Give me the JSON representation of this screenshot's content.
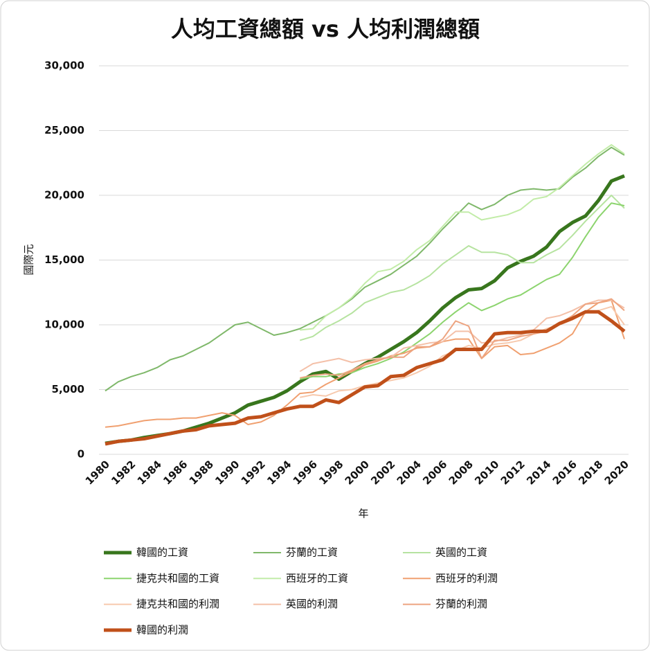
{
  "chart_data": {
    "type": "line",
    "title": "人均工資總額 vs 人均利潤總額",
    "x_label": "年",
    "y_label": "國際元",
    "x": [
      1980,
      1981,
      1982,
      1983,
      1984,
      1985,
      1986,
      1987,
      1988,
      1989,
      1990,
      1991,
      1992,
      1993,
      1994,
      1995,
      1996,
      1997,
      1998,
      1999,
      2000,
      2001,
      2002,
      2003,
      2004,
      2005,
      2006,
      2007,
      2008,
      2009,
      2010,
      2011,
      2012,
      2013,
      2014,
      2015,
      2016,
      2017,
      2018,
      2019,
      2020
    ],
    "xlim": [
      1980,
      2020
    ],
    "xticks": [
      1980,
      1982,
      1984,
      1986,
      1988,
      1990,
      1992,
      1994,
      1996,
      1998,
      2000,
      2002,
      2004,
      2006,
      2008,
      2010,
      2012,
      2014,
      2016,
      2018,
      2020
    ],
    "ylim": [
      0,
      30000
    ],
    "yticks": [
      0,
      {
        "value": 5000,
        "label": "5,000"
      },
      {
        "value": 10000,
        "label": "10,000"
      },
      {
        "value": 15000,
        "label": "15,000"
      },
      {
        "value": 20000,
        "label": "20,000"
      },
      {
        "value": 25000,
        "label": "25,000"
      },
      {
        "value": 30000,
        "label": "30,000"
      }
    ],
    "grid": true,
    "series": [
      {
        "name": "韓國的工資",
        "color": "#38761d",
        "line_width": 5,
        "values": [
          850,
          1000,
          1100,
          1300,
          1450,
          1600,
          1800,
          2100,
          2400,
          2800,
          3200,
          3800,
          4100,
          4400,
          4900,
          5600,
          6200,
          6400,
          5800,
          6400,
          7000,
          7500,
          8100,
          8700,
          9400,
          10300,
          11300,
          12100,
          12700,
          12800,
          13400,
          14400,
          14900,
          15300,
          16000,
          17200,
          17900,
          18400,
          19600,
          21100,
          21500
        ]
      },
      {
        "name": "芬蘭的工資",
        "color": "#7fb86a",
        "line_width": 2,
        "values": [
          4900,
          5600,
          6000,
          6300,
          6700,
          7300,
          7600,
          8100,
          8600,
          9300,
          10000,
          10200,
          9700,
          9200,
          9400,
          9700,
          10200,
          10700,
          11300,
          12000,
          12900,
          13400,
          13900,
          14600,
          15300,
          16300,
          17400,
          18400,
          19400,
          18900,
          19300,
          20000,
          20400,
          20500,
          20400,
          20500,
          21400,
          22100,
          23000,
          23700,
          23100
        ]
      },
      {
        "name": "英國的工資",
        "color": "#b6e3a0",
        "line_width": 2,
        "values": [
          null,
          null,
          null,
          null,
          null,
          null,
          null,
          null,
          null,
          null,
          null,
          null,
          null,
          null,
          null,
          8800,
          9100,
          9800,
          10300,
          10900,
          11700,
          12100,
          12500,
          12700,
          13200,
          13800,
          14700,
          15400,
          16100,
          15600,
          15600,
          15400,
          14800,
          14800,
          15400,
          15900,
          16900,
          18000,
          19000,
          20000,
          19000
        ]
      },
      {
        "name": "捷克共和國的工資",
        "color": "#8cd46e",
        "line_width": 2,
        "values": [
          null,
          null,
          null,
          null,
          null,
          null,
          null,
          null,
          null,
          null,
          null,
          null,
          null,
          null,
          null,
          5800,
          6000,
          6000,
          6200,
          6300,
          6700,
          7000,
          7400,
          7900,
          8600,
          9300,
          10200,
          11000,
          11700,
          11100,
          11500,
          12000,
          12300,
          12900,
          13500,
          13900,
          15200,
          16800,
          18300,
          19400,
          19200
        ]
      },
      {
        "name": "西班牙的工資",
        "color": "#c2eca8",
        "line_width": 2,
        "values": [
          null,
          null,
          null,
          null,
          null,
          null,
          null,
          null,
          null,
          null,
          null,
          null,
          null,
          null,
          null,
          9600,
          9700,
          10700,
          11300,
          12100,
          13200,
          14100,
          14300,
          14900,
          15800,
          16500,
          17600,
          18700,
          18700,
          18100,
          18300,
          18500,
          18900,
          19700,
          19900,
          20600,
          21500,
          22400,
          23200,
          23900,
          23200
        ]
      },
      {
        "name": "西班牙的利潤",
        "color": "#f0a070",
        "line_width": 2,
        "values": [
          2100,
          2200,
          2400,
          2600,
          2700,
          2700,
          2800,
          2800,
          3000,
          3200,
          3000,
          2300,
          2500,
          3000,
          3800,
          4700,
          4800,
          5400,
          5900,
          6400,
          6900,
          7200,
          7600,
          7800,
          8200,
          8300,
          8700,
          8900,
          8900,
          7400,
          8300,
          8400,
          7700,
          7800,
          8200,
          8600,
          9300,
          11000,
          11700,
          11900,
          8900
        ]
      },
      {
        "name": "捷克共和國的利潤",
        "color": "#f7c9ad",
        "line_width": 2,
        "values": [
          null,
          null,
          null,
          null,
          null,
          null,
          null,
          null,
          null,
          null,
          null,
          null,
          null,
          null,
          null,
          4400,
          4600,
          4500,
          4900,
          5000,
          5300,
          5500,
          5700,
          5900,
          6300,
          6800,
          7600,
          8000,
          8400,
          8200,
          8500,
          8600,
          8800,
          9300,
          9700,
          10000,
          10400,
          10900,
          11100,
          11400,
          10000
        ]
      },
      {
        "name": "英國的利潤",
        "color": "#f4c0a8",
        "line_width": 2,
        "values": [
          null,
          null,
          null,
          null,
          null,
          null,
          null,
          null,
          null,
          null,
          null,
          null,
          null,
          null,
          null,
          6400,
          7000,
          7200,
          7400,
          7100,
          7300,
          7400,
          7500,
          8200,
          8400,
          8600,
          8700,
          9500,
          9500,
          8600,
          8700,
          9000,
          9200,
          9600,
          10500,
          10700,
          11100,
          11600,
          11900,
          11900,
          11300
        ]
      },
      {
        "name": "芬蘭的利潤",
        "color": "#eda480",
        "line_width": 2,
        "values": [
          null,
          null,
          null,
          null,
          null,
          null,
          null,
          null,
          null,
          null,
          null,
          null,
          null,
          null,
          null,
          5900,
          6100,
          6200,
          6100,
          6500,
          7000,
          7300,
          7500,
          7500,
          8300,
          8300,
          8900,
          10300,
          9900,
          7400,
          8800,
          8800,
          9100,
          9300,
          9500,
          10100,
          10700,
          11600,
          11700,
          12000,
          11100
        ]
      },
      {
        "name": "韓國的利潤",
        "color": "#c0501a",
        "line_width": 5,
        "values": [
          800,
          1000,
          1100,
          1200,
          1400,
          1600,
          1800,
          1900,
          2200,
          2300,
          2400,
          2800,
          2900,
          3200,
          3500,
          3700,
          3700,
          4200,
          4000,
          4600,
          5200,
          5300,
          6000,
          6100,
          6700,
          7000,
          7300,
          8100,
          8100,
          8100,
          9300,
          9400,
          9400,
          9500,
          9500,
          10100,
          10500,
          11000,
          11000,
          10300,
          9500
        ]
      }
    ]
  }
}
